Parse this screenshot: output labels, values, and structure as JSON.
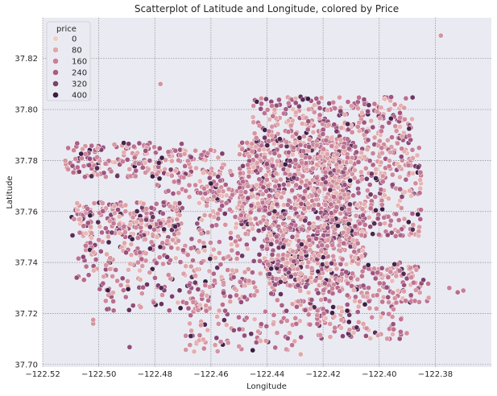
{
  "chart_data": {
    "type": "scatter",
    "title": "Scatterplot of Latitude and Longitude, colored by Price",
    "xlabel": "Longitude",
    "ylabel": "Latitude",
    "xlim": [
      -122.52,
      -122.36
    ],
    "ylim": [
      37.699,
      37.836
    ],
    "xticks": [
      -122.52,
      -122.5,
      -122.48,
      -122.46,
      -122.44,
      -122.42,
      -122.4,
      -122.38
    ],
    "xtick_labels": [
      "−122.52",
      "−122.50",
      "−122.48",
      "−122.46",
      "−122.44",
      "−122.42",
      "−122.40",
      "−122.38"
    ],
    "yticks": [
      37.7,
      37.72,
      37.74,
      37.76,
      37.78,
      37.8,
      37.82
    ],
    "ytick_labels": [
      "37.70",
      "37.72",
      "37.74",
      "37.76",
      "37.78",
      "37.80",
      "37.82"
    ],
    "grid": true,
    "hue": "price",
    "legend": {
      "title": "price",
      "placement": "top-left",
      "entries": [
        {
          "label": "0",
          "color": "#f0cfc8"
        },
        {
          "label": "80",
          "color": "#e0a8aa"
        },
        {
          "label": "160",
          "color": "#c97f98"
        },
        {
          "label": "240",
          "color": "#a85c86"
        },
        {
          "label": "320",
          "color": "#7d3f6e"
        },
        {
          "label": "400",
          "color": "#3a1e44"
        }
      ]
    },
    "clusters": [
      {
        "lon": [
          -122.512,
          -122.47
        ],
        "lat": [
          37.7735,
          37.787
        ],
        "n": 180
      },
      {
        "lon": [
          -122.47,
          -122.455
        ],
        "lat": [
          37.774,
          37.785
        ],
        "n": 40
      },
      {
        "lon": [
          -122.51,
          -122.47
        ],
        "lat": [
          37.75,
          37.764
        ],
        "n": 230
      },
      {
        "lon": [
          -122.508,
          -122.465
        ],
        "lat": [
          37.733,
          37.75
        ],
        "n": 130
      },
      {
        "lon": [
          -122.5,
          -122.46
        ],
        "lat": [
          37.72,
          37.733
        ],
        "n": 70
      },
      {
        "lon": [
          -122.465,
          -122.435
        ],
        "lat": [
          37.725,
          37.77
        ],
        "n": 240
      },
      {
        "lon": [
          -122.47,
          -122.43
        ],
        "lat": [
          37.705,
          37.725
        ],
        "n": 90
      },
      {
        "lon": [
          -122.45,
          -122.41
        ],
        "lat": [
          37.755,
          37.788
        ],
        "n": 650
      },
      {
        "lon": [
          -122.445,
          -122.388
        ],
        "lat": [
          37.785,
          37.805
        ],
        "n": 320
      },
      {
        "lon": [
          -122.42,
          -122.385
        ],
        "lat": [
          37.75,
          37.785
        ],
        "n": 330
      },
      {
        "lon": [
          -122.44,
          -122.405
        ],
        "lat": [
          37.73,
          37.755
        ],
        "n": 420
      },
      {
        "lon": [
          -122.43,
          -122.39
        ],
        "lat": [
          37.71,
          37.73
        ],
        "n": 150
      },
      {
        "lon": [
          -122.405,
          -122.382
        ],
        "lat": [
          37.724,
          37.74
        ],
        "n": 90
      },
      {
        "lon": [
          -122.48,
          -122.445
        ],
        "lat": [
          37.765,
          37.776
        ],
        "n": 80
      }
    ],
    "outliers": [
      {
        "lon": -122.378,
        "lat": 37.829,
        "price": 120
      },
      {
        "lon": -122.478,
        "lat": 37.81,
        "price": 120
      },
      {
        "lon": -122.489,
        "lat": 37.7068,
        "price": 280
      },
      {
        "lon": -122.375,
        "lat": 37.73,
        "price": 160
      },
      {
        "lon": -122.372,
        "lat": 37.7283,
        "price": 200
      },
      {
        "lon": -122.37,
        "lat": 37.729,
        "price": 160
      },
      {
        "lon": -122.428,
        "lat": 37.704,
        "price": 80
      },
      {
        "lon": -122.421,
        "lat": 37.7115,
        "price": 120
      },
      {
        "lon": -122.502,
        "lat": 37.716,
        "price": 120
      },
      {
        "lon": -122.502,
        "lat": 37.7175,
        "price": 120
      }
    ]
  }
}
